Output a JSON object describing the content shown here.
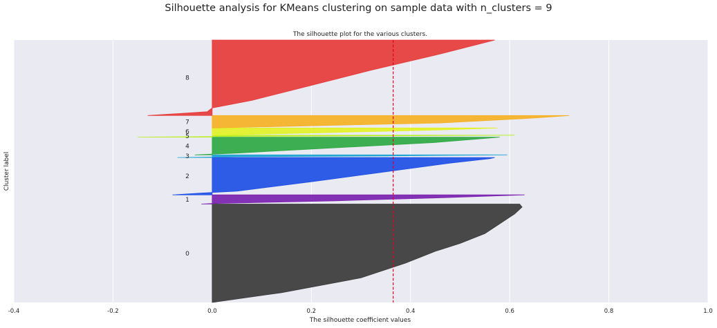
{
  "figure": {
    "suptitle": "Silhouette analysis for KMeans clustering on sample data with n_clusters = 9"
  },
  "chart_data": {
    "type": "area",
    "title": "The silhouette plot for the various clusters.",
    "xlabel": "The silhouette coefficient values",
    "ylabel": "Cluster label",
    "xlim": [
      -0.4,
      1.0
    ],
    "ylim": [
      0,
      400
    ],
    "xticks": [
      -0.4,
      -0.2,
      0.0,
      0.2,
      0.4,
      0.6,
      0.8,
      1.0
    ],
    "xtick_labels": [
      "-0.4",
      "-0.2",
      "0.0",
      "0.2",
      "0.4",
      "0.6",
      "0.8",
      "1.0"
    ],
    "yticks_shown": false,
    "grid": true,
    "background": "#eaeaf2",
    "average_silhouette_score": 0.365,
    "average_line_color": "#e8001c",
    "series": [
      {
        "label": "0",
        "y_range": [
          0,
          150
        ],
        "color": "#3a3a3a",
        "profile": [
          [
            0,
            0.0
          ],
          [
            0.1,
            0.14
          ],
          [
            0.25,
            0.3
          ],
          [
            0.4,
            0.39
          ],
          [
            0.5,
            0.44
          ],
          [
            0.52,
            0.45
          ],
          [
            0.6,
            0.5
          ],
          [
            0.7,
            0.55
          ],
          [
            0.8,
            0.58
          ],
          [
            0.9,
            0.61
          ],
          [
            0.97,
            0.625
          ],
          [
            1,
            0.62
          ]
        ]
      },
      {
        "label": "1",
        "y_range": [
          150,
          164
        ],
        "color": "#7b22b0",
        "profile": [
          [
            0,
            -0.022
          ],
          [
            0.06,
            0.0
          ],
          [
            0.35,
            0.25
          ],
          [
            0.7,
            0.47
          ],
          [
            1,
            0.63
          ]
        ]
      },
      {
        "label": "2",
        "y_range": [
          164,
          221
        ],
        "color": "#1e4fe6",
        "profile": [
          [
            0,
            -0.08
          ],
          [
            0.05,
            -0.02
          ],
          [
            0.1,
            0.05
          ],
          [
            0.35,
            0.2
          ],
          [
            0.6,
            0.34
          ],
          [
            0.85,
            0.48
          ],
          [
            0.97,
            0.56
          ],
          [
            1,
            0.57
          ]
        ]
      },
      {
        "label": "3",
        "y_range": [
          221,
          225
        ],
        "color": "#1aa3d0",
        "profile": [
          [
            0,
            -0.07
          ],
          [
            0.3,
            0.05
          ],
          [
            0.6,
            0.35
          ],
          [
            1,
            0.595
          ]
        ]
      },
      {
        "label": "4",
        "y_range": [
          225,
          252
        ],
        "color": "#2ea843",
        "profile": [
          [
            0,
            -0.035
          ],
          [
            0.1,
            0.05
          ],
          [
            0.4,
            0.25
          ],
          [
            0.7,
            0.45
          ],
          [
            0.95,
            0.56
          ],
          [
            1,
            0.58
          ]
        ]
      },
      {
        "label": "5",
        "y_range": [
          252,
          255
        ],
        "color": "#b8ef1c",
        "profile": [
          [
            0,
            -0.15
          ],
          [
            0.4,
            0.05
          ],
          [
            0.7,
            0.4
          ],
          [
            1,
            0.61
          ]
        ]
      },
      {
        "label": "6",
        "y_range": [
          255,
          266
        ],
        "color": "#e2f227",
        "profile": [
          [
            0,
            0.0
          ],
          [
            0.3,
            0.2
          ],
          [
            0.7,
            0.45
          ],
          [
            1,
            0.575
          ]
        ]
      },
      {
        "label": "7",
        "y_range": [
          266,
          285
        ],
        "color": "#f5b025",
        "profile": [
          [
            0,
            0.0
          ],
          [
            0.4,
            0.46
          ],
          [
            0.8,
            0.65
          ],
          [
            1,
            0.72
          ]
        ]
      },
      {
        "label": "8",
        "y_range": [
          285,
          400
        ],
        "color": "#e63a3a",
        "profile": [
          [
            0,
            -0.13
          ],
          [
            0.05,
            -0.01
          ],
          [
            0.1,
            0.0
          ],
          [
            0.2,
            0.08
          ],
          [
            0.4,
            0.2
          ],
          [
            0.6,
            0.32
          ],
          [
            0.8,
            0.45
          ],
          [
            0.95,
            0.54
          ],
          [
            1,
            0.57
          ]
        ]
      }
    ]
  }
}
